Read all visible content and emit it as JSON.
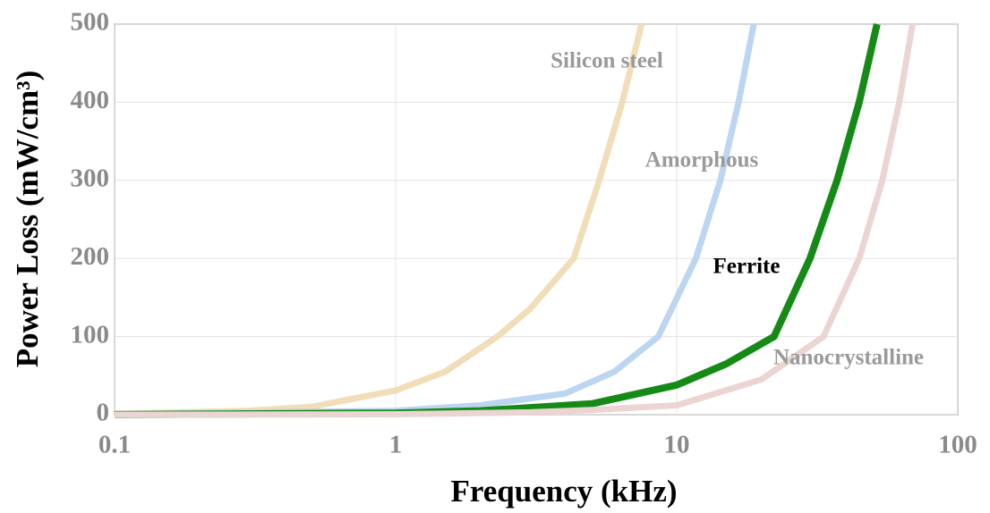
{
  "chart_data": {
    "type": "line",
    "x_label": "Frequency (kHz)",
    "y_label": "Power Loss (mW/cm³)",
    "xscale": "log",
    "xlim": [
      0.1,
      100
    ],
    "xticks": [
      0.1,
      1,
      10,
      100
    ],
    "ylim": [
      0,
      500
    ],
    "yticks": [
      0,
      100,
      200,
      300,
      400,
      500
    ],
    "grid": true,
    "series": [
      {
        "name": "Silicon steel",
        "color": "#f1ddb8",
        "label_color": "#9a9a9a",
        "x": [
          0.1,
          0.3,
          0.5,
          1,
          1.5,
          2.3,
          3,
          4.3,
          5.3,
          6.4,
          7.5
        ],
        "values": [
          1,
          5,
          10,
          31,
          55,
          100,
          135,
          200,
          300,
          400,
          500
        ]
      },
      {
        "name": "Amorphous",
        "color": "#bcd5f1",
        "label_color": "#9a9a9a",
        "x": [
          0.1,
          1,
          2,
          4,
          6,
          8.6,
          11.7,
          14.3,
          16.6,
          18.8
        ],
        "values": [
          0.5,
          5,
          12,
          27,
          55,
          100,
          200,
          300,
          400,
          500
        ]
      },
      {
        "name": "Ferrite",
        "color": "#168a16",
        "label_color": "#000000",
        "x": [
          0.1,
          1,
          2,
          5,
          10,
          15,
          22.2,
          29.8,
          37.2,
          44.6,
          51.6
        ],
        "values": [
          0.2,
          2,
          5,
          14,
          38,
          65,
          100,
          200,
          300,
          400,
          500
        ]
      },
      {
        "name": "Nanocrystalline",
        "color": "#ebd5d2",
        "label_color": "#9a9a9a",
        "x": [
          0.1,
          1,
          3,
          5,
          10,
          20,
          33.3,
          44.6,
          53.9,
          61.9,
          69
        ],
        "values": [
          0,
          0.5,
          3,
          6,
          12,
          45,
          100,
          200,
          300,
          400,
          500
        ]
      }
    ]
  }
}
